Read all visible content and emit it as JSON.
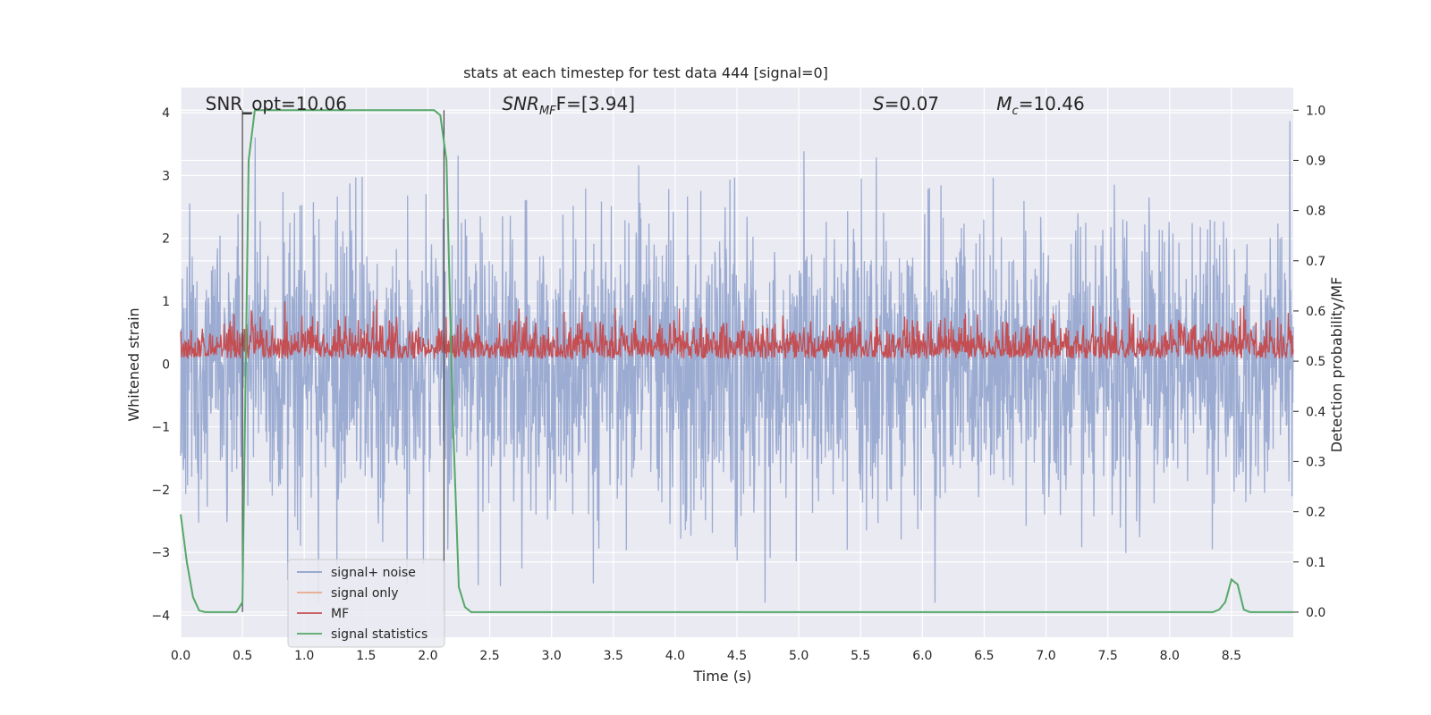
{
  "chart_data": {
    "type": "line",
    "title": "stats at each timestep for test data 444 [signal=0]",
    "xlabel": "Time (s)",
    "ylabel": "Whitened strain",
    "ylabel_right": "Detection probability/MF",
    "xlim": [
      0.0,
      9.0
    ],
    "ylim": [
      -4.35,
      4.4
    ],
    "ylim_right": [
      -0.05,
      1.045
    ],
    "x_ticks": [
      "0.0",
      "0.5",
      "1.0",
      "1.5",
      "2.0",
      "2.5",
      "3.0",
      "3.5",
      "4.0",
      "4.5",
      "5.0",
      "5.5",
      "6.0",
      "6.5",
      "7.0",
      "7.5",
      "8.0",
      "8.5"
    ],
    "y_ticks": [
      "−4",
      "−3",
      "−2",
      "−1",
      "0",
      "1",
      "2",
      "3",
      "4"
    ],
    "y_ticks_right": [
      "0.0",
      "0.1",
      "0.2",
      "0.3",
      "0.4",
      "0.5",
      "0.6",
      "0.7",
      "0.8",
      "0.9",
      "1.0"
    ],
    "annotations": [
      {
        "text": "SNR_opt=10.06",
        "x": 0.2
      },
      {
        "text": "SNR",
        "sub": "MF",
        "suffix": "F=[3.94]",
        "x": 2.6
      },
      {
        "text": "S",
        "suffix": "=0.07",
        "x": 5.6
      },
      {
        "text": "M",
        "sub": "c",
        "suffix": "=10.46",
        "x": 6.6
      }
    ],
    "window_markers": [
      0.5,
      2.13
    ],
    "series": [
      {
        "name": "signal+ noise",
        "color": "#8da0cb",
        "axis": "left",
        "description": "dense whitened noise trace between about -3.8 and 4.0"
      },
      {
        "name": "signal only",
        "color": "#e8a98a",
        "axis": "left",
        "values": []
      },
      {
        "name": "MF",
        "color": "#c44e52",
        "axis": "right",
        "description": "matched-filter output oscillating between about 0.50 and 0.63"
      },
      {
        "name": "signal statistics",
        "color": "#55a868",
        "axis": "right",
        "x": [
          0.0,
          0.05,
          0.1,
          0.15,
          0.2,
          0.3,
          0.4,
          0.45,
          0.5,
          0.55,
          0.6,
          0.7,
          0.8,
          1.0,
          1.5,
          2.0,
          2.05,
          2.1,
          2.15,
          2.2,
          2.25,
          2.3,
          2.35,
          2.5,
          3.0,
          4.0,
          5.0,
          6.0,
          7.0,
          8.0,
          8.35,
          8.4,
          8.45,
          8.5,
          8.55,
          8.6,
          8.65,
          8.7,
          8.8,
          9.0
        ],
        "values": [
          0.195,
          0.1,
          0.03,
          0.003,
          0.0,
          0.0,
          0.0,
          0.0,
          0.02,
          0.9,
          1.0,
          1.0,
          1.0,
          1.0,
          1.0,
          1.0,
          1.0,
          0.99,
          0.9,
          0.4,
          0.05,
          0.01,
          0.0,
          0.0,
          0.0,
          0.0,
          0.0,
          0.0,
          0.0,
          0.0,
          0.0,
          0.005,
          0.02,
          0.065,
          0.055,
          0.005,
          0.0,
          0.0,
          0.0,
          0.0
        ]
      }
    ],
    "legend": {
      "location": "lower-left",
      "entries": [
        "signal+ noise",
        "signal only",
        "MF",
        "signal statistics"
      ]
    }
  }
}
